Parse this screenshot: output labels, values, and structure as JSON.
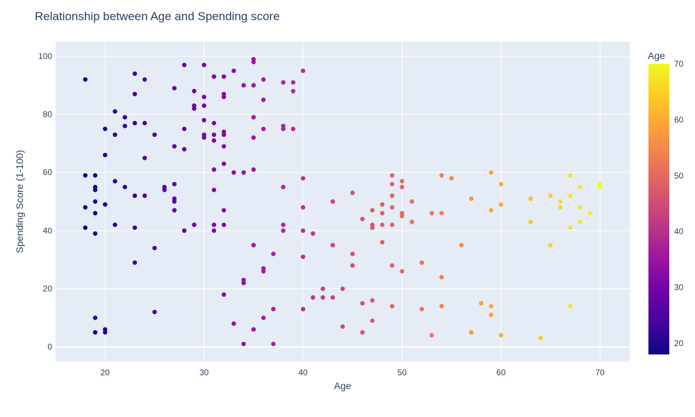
{
  "chart_data": {
    "type": "scatter",
    "title": "Relationship between Age and Spending score",
    "xlabel": "Age",
    "ylabel": "Spending Score (1-100)",
    "xlim": [
      15,
      73
    ],
    "ylim": [
      -5,
      105
    ],
    "x_ticks": [
      20,
      30,
      40,
      50,
      60,
      70
    ],
    "y_ticks": [
      0,
      20,
      40,
      60,
      80,
      100
    ],
    "grid": true,
    "colorbar": {
      "title": "Age",
      "range": [
        18,
        70
      ],
      "ticks": [
        20,
        30,
        40,
        50,
        60,
        70
      ],
      "colorscale": [
        "#0d0887",
        "#46039f",
        "#7201a8",
        "#9c179e",
        "#bd3786",
        "#d8576b",
        "#ed7953",
        "#fb9f3a",
        "#fdca26",
        "#f0f921"
      ]
    },
    "points": [
      [
        18,
        92
      ],
      [
        18,
        59
      ],
      [
        18,
        48
      ],
      [
        18,
        41
      ],
      [
        19,
        59
      ],
      [
        19,
        55
      ],
      [
        19,
        54
      ],
      [
        19,
        50
      ],
      [
        19,
        46
      ],
      [
        19,
        39
      ],
      [
        19,
        10
      ],
      [
        19,
        5
      ],
      [
        20,
        75
      ],
      [
        20,
        66
      ],
      [
        20,
        49
      ],
      [
        20,
        6
      ],
      [
        20,
        5
      ],
      [
        21,
        81
      ],
      [
        21,
        73
      ],
      [
        21,
        57
      ],
      [
        21,
        42
      ],
      [
        22,
        79
      ],
      [
        22,
        76
      ],
      [
        22,
        55
      ],
      [
        23,
        94
      ],
      [
        23,
        87
      ],
      [
        23,
        77
      ],
      [
        23,
        52
      ],
      [
        23,
        41
      ],
      [
        23,
        29
      ],
      [
        24,
        92
      ],
      [
        24,
        77
      ],
      [
        24,
        65
      ],
      [
        24,
        52
      ],
      [
        25,
        73
      ],
      [
        25,
        34
      ],
      [
        25,
        12
      ],
      [
        26,
        55
      ],
      [
        26,
        54
      ],
      [
        27,
        89
      ],
      [
        27,
        69
      ],
      [
        27,
        56
      ],
      [
        27,
        51
      ],
      [
        27,
        50
      ],
      [
        27,
        47
      ],
      [
        28,
        97
      ],
      [
        28,
        75
      ],
      [
        28,
        68
      ],
      [
        28,
        40
      ],
      [
        29,
        88
      ],
      [
        29,
        83
      ],
      [
        29,
        82
      ],
      [
        29,
        42
      ],
      [
        30,
        97
      ],
      [
        30,
        86
      ],
      [
        30,
        83
      ],
      [
        30,
        78
      ],
      [
        30,
        73
      ],
      [
        30,
        72
      ],
      [
        31,
        93
      ],
      [
        31,
        77
      ],
      [
        31,
        73
      ],
      [
        31,
        71
      ],
      [
        31,
        61
      ],
      [
        31,
        54
      ],
      [
        31,
        42
      ],
      [
        31,
        40
      ],
      [
        32,
        93
      ],
      [
        32,
        87
      ],
      [
        32,
        86
      ],
      [
        32,
        74
      ],
      [
        32,
        73
      ],
      [
        32,
        69
      ],
      [
        32,
        63
      ],
      [
        32,
        47
      ],
      [
        32,
        42
      ],
      [
        32,
        18
      ],
      [
        33,
        95
      ],
      [
        33,
        60
      ],
      [
        33,
        8
      ],
      [
        34,
        90
      ],
      [
        34,
        60
      ],
      [
        34,
        23
      ],
      [
        34,
        22
      ],
      [
        34,
        1
      ],
      [
        35,
        99
      ],
      [
        35,
        98
      ],
      [
        35,
        90
      ],
      [
        35,
        79
      ],
      [
        35,
        72
      ],
      [
        35,
        61
      ],
      [
        35,
        35
      ],
      [
        35,
        6
      ],
      [
        36,
        92
      ],
      [
        36,
        85
      ],
      [
        36,
        75
      ],
      [
        36,
        27
      ],
      [
        36,
        26
      ],
      [
        36,
        10
      ],
      [
        37,
        32
      ],
      [
        37,
        13
      ],
      [
        37,
        1
      ],
      [
        38,
        91
      ],
      [
        38,
        76
      ],
      [
        38,
        75
      ],
      [
        38,
        55
      ],
      [
        38,
        42
      ],
      [
        38,
        40
      ],
      [
        39,
        91
      ],
      [
        39,
        88
      ],
      [
        39,
        75
      ],
      [
        40,
        95
      ],
      [
        40,
        58
      ],
      [
        40,
        48
      ],
      [
        40,
        40
      ],
      [
        40,
        31
      ],
      [
        40,
        13
      ],
      [
        41,
        39
      ],
      [
        41,
        17
      ],
      [
        42,
        20
      ],
      [
        42,
        17
      ],
      [
        43,
        50
      ],
      [
        43,
        35
      ],
      [
        43,
        17
      ],
      [
        44,
        20
      ],
      [
        44,
        7
      ],
      [
        45,
        53
      ],
      [
        45,
        32
      ],
      [
        45,
        28
      ],
      [
        46,
        44
      ],
      [
        46,
        15
      ],
      [
        46,
        5
      ],
      [
        47,
        47
      ],
      [
        47,
        42
      ],
      [
        47,
        41
      ],
      [
        47,
        16
      ],
      [
        47,
        9
      ],
      [
        48,
        49
      ],
      [
        48,
        46
      ],
      [
        48,
        42
      ],
      [
        48,
        36
      ],
      [
        49,
        59
      ],
      [
        49,
        56
      ],
      [
        49,
        52
      ],
      [
        49,
        48
      ],
      [
        49,
        42
      ],
      [
        49,
        28
      ],
      [
        49,
        14
      ],
      [
        50,
        57
      ],
      [
        50,
        55
      ],
      [
        50,
        46
      ],
      [
        50,
        45
      ],
      [
        50,
        26
      ],
      [
        51,
        50
      ],
      [
        51,
        43
      ],
      [
        52,
        29
      ],
      [
        52,
        13
      ],
      [
        53,
        46
      ],
      [
        53,
        4
      ],
      [
        54,
        59
      ],
      [
        54,
        46
      ],
      [
        54,
        24
      ],
      [
        54,
        14
      ],
      [
        55,
        58
      ],
      [
        56,
        35
      ],
      [
        57,
        51
      ],
      [
        57,
        5
      ],
      [
        58,
        15
      ],
      [
        59,
        60
      ],
      [
        59,
        47
      ],
      [
        59,
        14
      ],
      [
        59,
        11
      ],
      [
        60,
        56
      ],
      [
        60,
        49
      ],
      [
        60,
        4
      ],
      [
        63,
        51
      ],
      [
        63,
        43
      ],
      [
        64,
        3
      ],
      [
        65,
        52
      ],
      [
        65,
        35
      ],
      [
        66,
        50
      ],
      [
        66,
        48
      ],
      [
        67,
        59
      ],
      [
        67,
        52
      ],
      [
        67,
        41
      ],
      [
        67,
        14
      ],
      [
        68,
        55
      ],
      [
        68,
        48
      ],
      [
        68,
        43
      ],
      [
        69,
        46
      ],
      [
        70,
        56
      ],
      [
        70,
        55
      ]
    ]
  }
}
